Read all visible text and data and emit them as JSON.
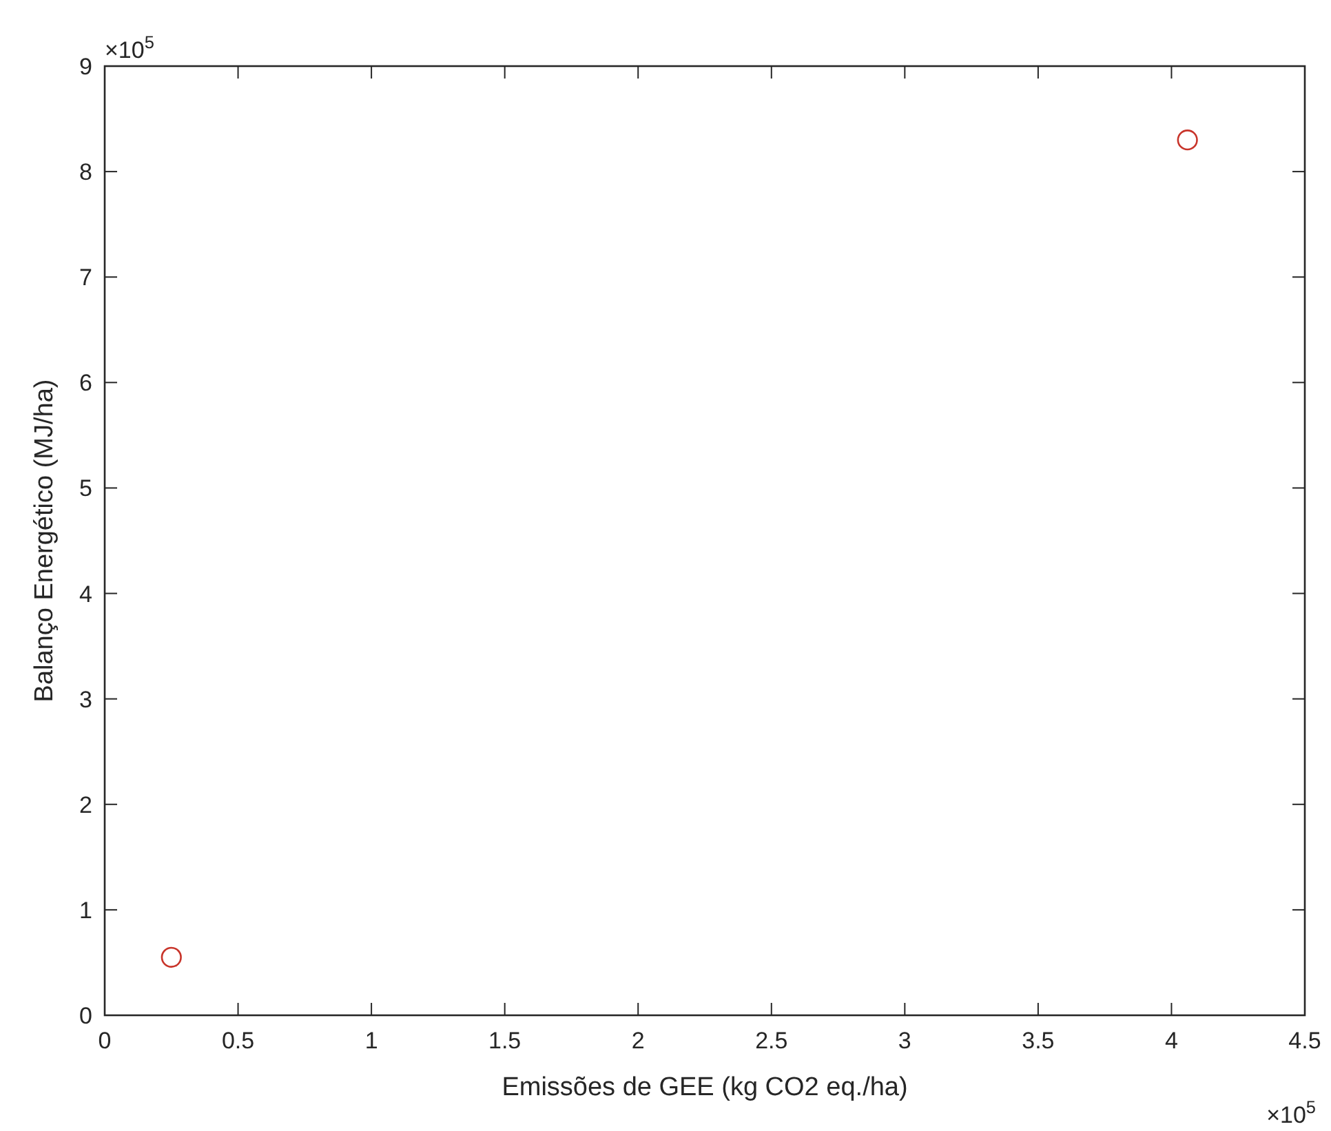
{
  "chart_data": {
    "type": "scatter",
    "xlabel": "Emissões de GEE (kg CO2 eq./ha)",
    "ylabel": "Balanço Energético (MJ/ha)",
    "x": [
      0.25,
      4.06
    ],
    "series": [
      {
        "color": "#c8342a",
        "values": [
          0.55,
          8.3
        ]
      }
    ],
    "marker": "circle",
    "grid": false,
    "xlim": [
      0,
      4.5
    ],
    "ylim": [
      0,
      9
    ],
    "xticks": [
      0,
      0.5,
      1,
      1.5,
      2,
      2.5,
      3,
      3.5,
      4,
      4.5
    ],
    "yticks": [
      0,
      1,
      2,
      3,
      4,
      5,
      6,
      7,
      8,
      9
    ],
    "annotations": [
      "×10$^{5}$",
      "×10$^{5}$"
    ]
  }
}
